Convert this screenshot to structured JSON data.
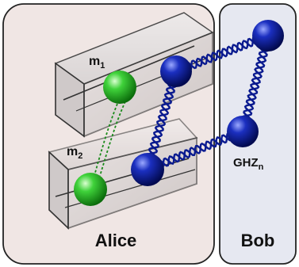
{
  "panels": {
    "alice": {
      "label": "Alice"
    },
    "bob": {
      "label": "Bob"
    }
  },
  "state_label": {
    "base": "GHZ",
    "subscript": "n"
  },
  "modules": [
    {
      "base": "m",
      "subscript": "1"
    },
    {
      "base": "m",
      "subscript": "2"
    }
  ],
  "colors": {
    "alice_panel": "#f0e6e4",
    "bob_panel": "#e6e8f1",
    "panel_border": "#222222",
    "memory_qubit": "#1faa1f",
    "photon_qubit": "#0a1a8f",
    "entanglement_link": "#0a1a8f",
    "local_link": "#1a8a1a",
    "trap_box": "#d8d4d4"
  },
  "icons": [
    "memory-qubit-icon",
    "photonic-qubit-icon",
    "ion-trap-module-icon"
  ]
}
